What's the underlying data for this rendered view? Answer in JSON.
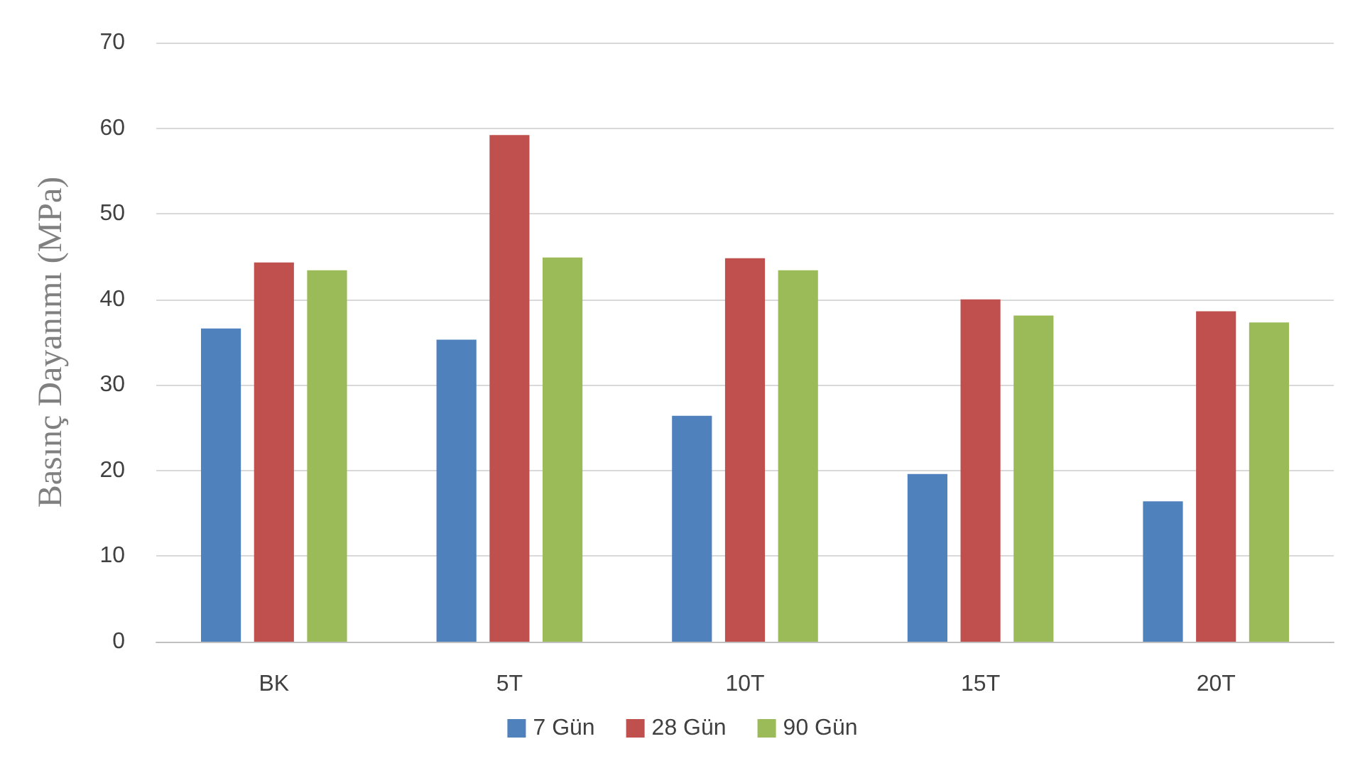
{
  "chart_data": {
    "type": "bar",
    "ylabel": "Basınç Dayanımı (MPa)",
    "categories": [
      "BK",
      "5T",
      "10T",
      "15T",
      "20T"
    ],
    "series": [
      {
        "name": "7 Gün",
        "color": "#4f81bd",
        "values": [
          36.6,
          35.3,
          26.4,
          19.6,
          16.4
        ]
      },
      {
        "name": "28 Gün",
        "color": "#c0504d",
        "values": [
          44.3,
          59.2,
          44.8,
          40.0,
          38.6
        ]
      },
      {
        "name": "90 Gün",
        "color": "#9bbb59",
        "values": [
          43.4,
          44.9,
          43.4,
          38.1,
          37.3
        ]
      }
    ],
    "ylim": [
      0,
      70
    ],
    "yticks": [
      0,
      10,
      20,
      30,
      40,
      50,
      60,
      70
    ],
    "grid": true,
    "legend": "bottom"
  }
}
